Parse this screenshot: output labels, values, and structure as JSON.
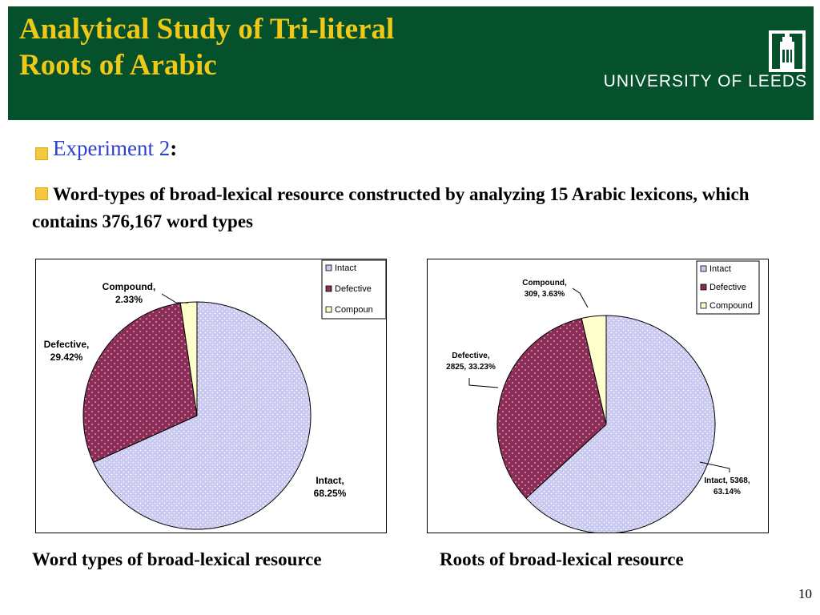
{
  "header": {
    "title_line1": "Analytical Study of Tri-literal",
    "title_line2": "Roots of Arabic",
    "university": "UNIVERSITY OF LEEDS"
  },
  "content": {
    "experiment_title": "Experiment 2",
    "experiment_colon": ":",
    "description": "Word-types of broad-lexical resource constructed by analyzing 15 Arabic lexicons, which contains 376,167 word types"
  },
  "captions": {
    "left": "Word types of broad-lexical resource",
    "right": "Roots of broad-lexical resource"
  },
  "page_number": "10",
  "colors": {
    "header_bg": "#05512c",
    "title": "#f0c818",
    "experiment": "#2f3fd0",
    "bullet": "#f4c841",
    "intact": "#c8c8f0",
    "defective": "#8c2d58",
    "compound": "#ffffcc"
  },
  "chart_data": [
    {
      "type": "pie",
      "legend": [
        "Intact",
        "Defective",
        "Compoun"
      ],
      "legend_position": "top-right",
      "slices": [
        {
          "name": "Intact",
          "value": 68.25,
          "label_line1": "Intact,",
          "label_line2": "68.25%"
        },
        {
          "name": "Defective",
          "value": 29.42,
          "label_line1": "Defective,",
          "label_line2": "29.42%"
        },
        {
          "name": "Compound",
          "value": 2.33,
          "label_line1": "Compound,",
          "label_line2": "2.33%"
        }
      ]
    },
    {
      "type": "pie",
      "legend": [
        "Intact",
        "Defective",
        "Compound"
      ],
      "legend_position": "top-right",
      "slices": [
        {
          "name": "Intact",
          "count": 5368,
          "value": 63.14,
          "label_line1": "Intact, 5368,",
          "label_line2": "63.14%"
        },
        {
          "name": "Defective",
          "count": 2825,
          "value": 33.23,
          "label_line1": "Defective,",
          "label_line2": "2825, 33.23%"
        },
        {
          "name": "Compound",
          "count": 309,
          "value": 3.63,
          "label_line1": "Compound,",
          "label_line2": "309, 3.63%"
        }
      ]
    }
  ]
}
